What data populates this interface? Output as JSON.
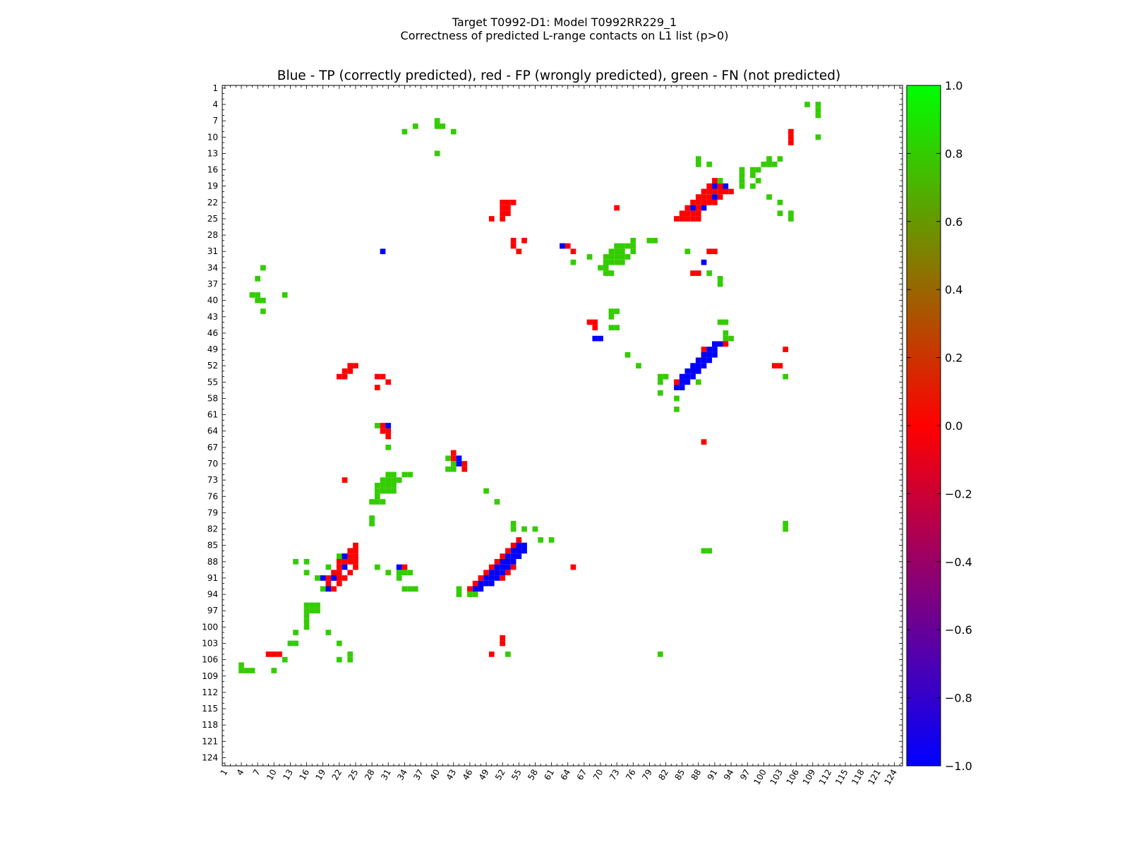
{
  "figure": {
    "title_line1": "Target T0992-D1: Model T0992RR229_1",
    "title_line2": "Correctness of predicted L-range contacts on L1 list (p>0)"
  },
  "chart_data": {
    "type": "heatmap",
    "title": "Blue - TP (correctly predicted), red - FP (wrongly predicted), green - FN (not predicted)",
    "xlabel": "",
    "ylabel": "",
    "xlim": [
      1,
      125
    ],
    "ylim": [
      1,
      125
    ],
    "x_tick_labels": [
      "1",
      "4",
      "7",
      "10",
      "13",
      "16",
      "19",
      "22",
      "25",
      "28",
      "31",
      "34",
      "37",
      "40",
      "43",
      "46",
      "49",
      "52",
      "55",
      "58",
      "61",
      "64",
      "67",
      "70",
      "73",
      "76",
      "79",
      "82",
      "85",
      "88",
      "91",
      "94",
      "97",
      "100",
      "103",
      "106",
      "109",
      "112",
      "115",
      "118",
      "121",
      "124"
    ],
    "y_tick_labels": [
      "1",
      "4",
      "7",
      "10",
      "13",
      "16",
      "19",
      "22",
      "25",
      "28",
      "31",
      "34",
      "37",
      "40",
      "43",
      "46",
      "49",
      "52",
      "55",
      "58",
      "61",
      "64",
      "67",
      "70",
      "73",
      "76",
      "79",
      "82",
      "85",
      "88",
      "91",
      "94",
      "97",
      "100",
      "103",
      "106",
      "109",
      "112",
      "115",
      "118",
      "121",
      "124"
    ],
    "colorbar": {
      "min": -1.0,
      "max": 1.0,
      "ticks": [
        "1.0",
        "0.8",
        "0.6",
        "0.4",
        "0.2",
        "0.0",
        "−0.2",
        "−0.4",
        "−0.6",
        "−0.8",
        "−1.0"
      ],
      "colors": [
        "#0000ff",
        "#ff0000",
        "#00ff00"
      ]
    },
    "categories": {
      "TP": {
        "value": -1.0,
        "color": "#0000ff"
      },
      "FP": {
        "value": 0.0,
        "color": "#ff0000"
      },
      "FN": {
        "value": 0.8,
        "color": "#33cc00"
      }
    },
    "tp_cells": [
      [
        19,
        91
      ],
      [
        19,
        93
      ],
      [
        21,
        91
      ],
      [
        23,
        87
      ],
      [
        23,
        89
      ],
      [
        30,
        63
      ],
      [
        31,
        30
      ],
      [
        33,
        89
      ],
      [
        48,
        92
      ],
      [
        48,
        91
      ],
      [
        49,
        90
      ],
      [
        49,
        91
      ],
      [
        50,
        89
      ],
      [
        50,
        90
      ],
      [
        50,
        91
      ],
      [
        51,
        88
      ],
      [
        51,
        89
      ],
      [
        51,
        90
      ],
      [
        52,
        87
      ],
      [
        52,
        88
      ],
      [
        52,
        89
      ],
      [
        53,
        86
      ],
      [
        53,
        87
      ],
      [
        53,
        88
      ],
      [
        54,
        85
      ],
      [
        54,
        86
      ],
      [
        54,
        87
      ],
      [
        55,
        85
      ],
      [
        55,
        86
      ],
      [
        56,
        84
      ],
      [
        56,
        85
      ],
      [
        47,
        69
      ],
      [
        47,
        70
      ],
      [
        63,
        31
      ],
      [
        69,
        44
      ],
      [
        70,
        44
      ],
      [
        85,
        55
      ],
      [
        85,
        56
      ],
      [
        86,
        54
      ],
      [
        86,
        55
      ],
      [
        86,
        56
      ],
      [
        87,
        53
      ],
      [
        87,
        54
      ],
      [
        87,
        55
      ],
      [
        88,
        52
      ],
      [
        88,
        53
      ],
      [
        88,
        54
      ],
      [
        89,
        51
      ],
      [
        89,
        52
      ],
      [
        89,
        53
      ],
      [
        90,
        50
      ],
      [
        90,
        51
      ],
      [
        90,
        52
      ],
      [
        91,
        49
      ],
      [
        91,
        50
      ],
      [
        91,
        51
      ],
      [
        92,
        48
      ],
      [
        92,
        49
      ],
      [
        92,
        50
      ],
      [
        93,
        47
      ],
      [
        93,
        48
      ],
      [
        87,
        23
      ],
      [
        89,
        23
      ],
      [
        89,
        33
      ],
      [
        91,
        19
      ],
      [
        91,
        21
      ],
      [
        93,
        20
      ]
    ],
    "fp_cells": [
      [
        9,
        105
      ],
      [
        10,
        105
      ],
      [
        11,
        105
      ],
      [
        18,
        91
      ],
      [
        19,
        90
      ],
      [
        19,
        92
      ],
      [
        20,
        89
      ],
      [
        20,
        90
      ],
      [
        20,
        91
      ],
      [
        20,
        92
      ],
      [
        20,
        93
      ],
      [
        20,
        94
      ],
      [
        21,
        88
      ],
      [
        21,
        89
      ],
      [
        21,
        90
      ],
      [
        21,
        92
      ],
      [
        22,
        87
      ],
      [
        22,
        88
      ],
      [
        22,
        89
      ],
      [
        22,
        90
      ],
      [
        22,
        91
      ],
      [
        22,
        52
      ],
      [
        22,
        53
      ],
      [
        22,
        54
      ],
      [
        23,
        52
      ],
      [
        23,
        53
      ],
      [
        23,
        73
      ],
      [
        23,
        86
      ],
      [
        23,
        88
      ],
      [
        24,
        85
      ],
      [
        24,
        86
      ],
      [
        24,
        87
      ],
      [
        24,
        88
      ],
      [
        24,
        52
      ],
      [
        24,
        53
      ],
      [
        25,
        50
      ],
      [
        25,
        52
      ],
      [
        25,
        84
      ],
      [
        25,
        85
      ],
      [
        25,
        86
      ],
      [
        25,
        87
      ],
      [
        25,
        88
      ],
      [
        29,
        54
      ],
      [
        30,
        54
      ],
      [
        31,
        55
      ],
      [
        29,
        56
      ],
      [
        30,
        64
      ],
      [
        31,
        65
      ],
      [
        31,
        90
      ],
      [
        31,
        91
      ],
      [
        35,
        87
      ],
      [
        35,
        88
      ],
      [
        44,
        68
      ],
      [
        44,
        69
      ],
      [
        45,
        69
      ],
      [
        48,
        91
      ],
      [
        48,
        93
      ],
      [
        49,
        89
      ],
      [
        49,
        104
      ],
      [
        50,
        89
      ],
      [
        51,
        88
      ],
      [
        52,
        24
      ],
      [
        52,
        25
      ],
      [
        52,
        102
      ],
      [
        52,
        103
      ],
      [
        53,
        23
      ],
      [
        53,
        24
      ],
      [
        53,
        87
      ],
      [
        54,
        22
      ],
      [
        54,
        23
      ],
      [
        54,
        29
      ],
      [
        54,
        30
      ],
      [
        55,
        31
      ],
      [
        55,
        84
      ],
      [
        56,
        29
      ],
      [
        63,
        30
      ],
      [
        64,
        30
      ],
      [
        64,
        31
      ],
      [
        65,
        31
      ],
      [
        66,
        89
      ],
      [
        68,
        43
      ],
      [
        69,
        43
      ],
      [
        70,
        45
      ],
      [
        71,
        45
      ],
      [
        73,
        23
      ],
      [
        85,
        25
      ],
      [
        86,
        24
      ],
      [
        86,
        25
      ],
      [
        87,
        23
      ],
      [
        87,
        24
      ],
      [
        87,
        25
      ],
      [
        88,
        22
      ],
      [
        88,
        23
      ],
      [
        88,
        24
      ],
      [
        88,
        25
      ],
      [
        89,
        22
      ],
      [
        89,
        25
      ],
      [
        89,
        34
      ],
      [
        89,
        65
      ],
      [
        90,
        21
      ],
      [
        90,
        22
      ],
      [
        90,
        24
      ],
      [
        91,
        20
      ],
      [
        91,
        21
      ],
      [
        91,
        22
      ],
      [
        91,
        23
      ],
      [
        92,
        20
      ],
      [
        92,
        22
      ],
      [
        93,
        21
      ],
      [
        84,
        55
      ],
      [
        85,
        54
      ],
      [
        86,
        53
      ],
      [
        87,
        52
      ],
      [
        88,
        51
      ],
      [
        89,
        50
      ],
      [
        90,
        49
      ],
      [
        91,
        48
      ],
      [
        92,
        47
      ],
      [
        93,
        46
      ],
      [
        89,
        54
      ],
      [
        90,
        53
      ],
      [
        91,
        52
      ],
      [
        102,
        52
      ],
      [
        103,
        52
      ],
      [
        105,
        9
      ],
      [
        105,
        10
      ],
      [
        105,
        11
      ],
      [
        105,
        50
      ]
    ],
    "fn_cells": [
      [
        4,
        108
      ],
      [
        4,
        110
      ],
      [
        5,
        110
      ],
      [
        6,
        110
      ],
      [
        10,
        110
      ],
      [
        7,
        40
      ],
      [
        8,
        40
      ],
      [
        8,
        41
      ],
      [
        9,
        34
      ],
      [
        8,
        36
      ],
      [
        9,
        43
      ],
      [
        13,
        40
      ],
      [
        14,
        88
      ],
      [
        14,
        101
      ],
      [
        14,
        103
      ],
      [
        15,
        88
      ],
      [
        15,
        90
      ],
      [
        15,
        100
      ],
      [
        15,
        101
      ],
      [
        15,
        102
      ],
      [
        16,
        96
      ],
      [
        16,
        98
      ],
      [
        16,
        99
      ],
      [
        17,
        96
      ],
      [
        17,
        98
      ],
      [
        18,
        96
      ],
      [
        18,
        99
      ],
      [
        19,
        96
      ],
      [
        19,
        98
      ],
      [
        18,
        92
      ],
      [
        21,
        101
      ],
      [
        22,
        88
      ],
      [
        22,
        103
      ],
      [
        24,
        105
      ],
      [
        24,
        103
      ],
      [
        25,
        105
      ],
      [
        29,
        79
      ],
      [
        29,
        80
      ],
      [
        29,
        76
      ],
      [
        30,
        63
      ],
      [
        30,
        73
      ],
      [
        30,
        74
      ],
      [
        30,
        75
      ],
      [
        30,
        76
      ],
      [
        31,
        72
      ],
      [
        31,
        73
      ],
      [
        31,
        74
      ],
      [
        31,
        76
      ],
      [
        31,
        86
      ],
      [
        32,
        68
      ],
      [
        32,
        71
      ],
      [
        32,
        72
      ],
      [
        32,
        73
      ],
      [
        32,
        74
      ],
      [
        32,
        75
      ],
      [
        33,
        65
      ],
      [
        33,
        71
      ],
      [
        33,
        72
      ],
      [
        33,
        73
      ],
      [
        33,
        74
      ],
      [
        34,
        70
      ],
      [
        34,
        71
      ],
      [
        35,
        71
      ],
      [
        35,
        72
      ],
      [
        35,
        90
      ],
      [
        34,
        8
      ],
      [
        36,
        7
      ],
      [
        36,
        92
      ],
      [
        37,
        92
      ],
      [
        39,
        6
      ],
      [
        39,
        7
      ],
      [
        39,
        12
      ],
      [
        40,
        7
      ],
      [
        40,
        8
      ],
      [
        42,
        8
      ],
      [
        42,
        72
      ],
      [
        42,
        73
      ],
      [
        43,
        72
      ],
      [
        45,
        72
      ],
      [
        45,
        73
      ],
      [
        44,
        92
      ],
      [
        44,
        93
      ],
      [
        46,
        93
      ],
      [
        47,
        93
      ],
      [
        47,
        94
      ],
      [
        48,
        92
      ],
      [
        50,
        75
      ],
      [
        52,
        77
      ],
      [
        54,
        81
      ],
      [
        54,
        82
      ],
      [
        55,
        81
      ],
      [
        55,
        88
      ],
      [
        54,
        104
      ],
      [
        57,
        81
      ],
      [
        58,
        84
      ],
      [
        60,
        84
      ],
      [
        63,
        29
      ],
      [
        67,
        31
      ],
      [
        69,
        42
      ],
      [
        70,
        43
      ],
      [
        71,
        42
      ],
      [
        71,
        43
      ],
      [
        72,
        34
      ],
      [
        72,
        35
      ],
      [
        72,
        31
      ],
      [
        72,
        32
      ],
      [
        73,
        30
      ],
      [
        73,
        31
      ],
      [
        73,
        32
      ],
      [
        73,
        33
      ],
      [
        74,
        29
      ],
      [
        74,
        30
      ],
      [
        74,
        31
      ],
      [
        74,
        32
      ],
      [
        75,
        29
      ],
      [
        75,
        30
      ],
      [
        75,
        31
      ],
      [
        75,
        32
      ],
      [
        76,
        29
      ],
      [
        77,
        28
      ],
      [
        77,
        29
      ],
      [
        77,
        30
      ],
      [
        75,
        49
      ],
      [
        77,
        51
      ],
      [
        80,
        28
      ],
      [
        81,
        28
      ],
      [
        81,
        54
      ],
      [
        82,
        54
      ],
      [
        82,
        56
      ],
      [
        82,
        58
      ],
      [
        84,
        59
      ],
      [
        84,
        61
      ],
      [
        86,
        55
      ],
      [
        86,
        89
      ],
      [
        86,
        90
      ],
      [
        88,
        14
      ],
      [
        88,
        16
      ],
      [
        88,
        22
      ],
      [
        89,
        29
      ],
      [
        89,
        20
      ],
      [
        90,
        16
      ],
      [
        90,
        34
      ],
      [
        90,
        31
      ],
      [
        90,
        33
      ],
      [
        90,
        35
      ],
      [
        91,
        18
      ],
      [
        93,
        34
      ],
      [
        93,
        35
      ],
      [
        93,
        36
      ],
      [
        93,
        44
      ],
      [
        93,
        19
      ],
      [
        94,
        44
      ],
      [
        94,
        46
      ],
      [
        94,
        47
      ],
      [
        96,
        16
      ],
      [
        96,
        17
      ],
      [
        96,
        18
      ],
      [
        97,
        16
      ],
      [
        97,
        17
      ],
      [
        97,
        18
      ],
      [
        98,
        16
      ],
      [
        99,
        16
      ],
      [
        100,
        16
      ],
      [
        101,
        14
      ],
      [
        101,
        20
      ],
      [
        103,
        13
      ],
      [
        103,
        14
      ],
      [
        103,
        22
      ],
      [
        105,
        24
      ],
      [
        105,
        53
      ],
      [
        105,
        81
      ],
      [
        106,
        12
      ],
      [
        106,
        22
      ],
      [
        106,
        24
      ],
      [
        107,
        4
      ],
      [
        108,
        4
      ],
      [
        108,
        5
      ],
      [
        108,
        6
      ],
      [
        108,
        10
      ],
      [
        81,
        104
      ],
      [
        82,
        104
      ],
      [
        87,
        22
      ],
      [
        91,
        33
      ]
    ]
  }
}
